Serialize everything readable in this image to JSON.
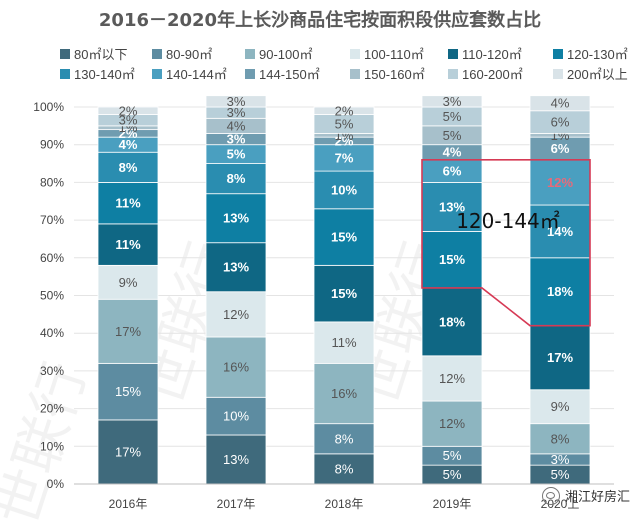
{
  "title": "2016－2020年上长沙商品住宅按面积段供应套数占比",
  "brand": "湘江好房汇",
  "annotation": "120-144㎡",
  "watermark": "世联行",
  "chart_data": {
    "type": "bar",
    "stacked": true,
    "categories": [
      "2016年",
      "2017年",
      "2018年",
      "2019年",
      "2020上"
    ],
    "yticks": [
      "0%",
      "10%",
      "20%",
      "30%",
      "40%",
      "50%",
      "60%",
      "70%",
      "80%",
      "90%",
      "100%"
    ],
    "ylim": [
      0,
      100
    ],
    "legend_position": "top",
    "highlight": {
      "from_category": "2019年",
      "to_category": "2020上",
      "segments": [
        "120-130㎡",
        "130-140㎡",
        "140-144㎡"
      ]
    },
    "series": [
      {
        "name": "80㎡以下",
        "color": "#3f6a7c",
        "values": [
          17,
          13,
          8,
          5,
          5
        ],
        "labels": [
          "17%",
          "13%",
          "8%",
          "5%",
          "5%"
        ]
      },
      {
        "name": "80-90㎡",
        "color": "#5d8ca1",
        "values": [
          15,
          10,
          8,
          5,
          3
        ],
        "labels": [
          "15%",
          "10%",
          "8%",
          "5%",
          "3%"
        ]
      },
      {
        "name": "90-100㎡",
        "color": "#8db5c0",
        "values": [
          17,
          16,
          16,
          12,
          8
        ],
        "labels": [
          "17%",
          "16%",
          "16%",
          "12%",
          "8%"
        ]
      },
      {
        "name": "100-110㎡",
        "color": "#dbe8ec",
        "values": [
          9,
          12,
          11,
          12,
          9
        ],
        "labels": [
          "9%",
          "12%",
          "11%",
          "12%",
          "9%"
        ]
      },
      {
        "name": "110-120㎡",
        "color": "#0f6784",
        "values": [
          11,
          13,
          15,
          18,
          17
        ],
        "labels": [
          "11%",
          "13%",
          "15%",
          "18%",
          "17%"
        ]
      },
      {
        "name": "120-130㎡",
        "color": "#0e7fa3",
        "values": [
          11,
          13,
          15,
          15,
          18
        ],
        "labels": [
          "11%",
          "13%",
          "15%",
          "15%",
          "18%"
        ]
      },
      {
        "name": "130-140㎡",
        "color": "#2a8db0",
        "values": [
          8,
          8,
          10,
          13,
          14
        ],
        "labels": [
          "8%",
          "8%",
          "10%",
          "13%",
          "14%"
        ]
      },
      {
        "name": "140-144㎡",
        "color": "#4a9fc0",
        "values": [
          4,
          5,
          7,
          6,
          12
        ],
        "labels": [
          "4%",
          "5%",
          "7%",
          "6%",
          "12%"
        ]
      },
      {
        "name": "144-150㎡",
        "color": "#6f9cb0",
        "values": [
          2,
          3,
          2,
          4,
          6
        ],
        "labels": [
          "2%",
          "3%",
          "2%",
          "4%",
          "6%"
        ]
      },
      {
        "name": "150-160㎡",
        "color": "#a7c0cb",
        "values": [
          1,
          4,
          1,
          5,
          1
        ],
        "labels": [
          "1%",
          "4%",
          "1%",
          "5%",
          "1%"
        ]
      },
      {
        "name": "160-200㎡",
        "color": "#b8cfd9",
        "values": [
          3,
          3,
          5,
          5,
          6
        ],
        "labels": [
          "3%",
          "3%",
          "5%",
          "5%",
          "6%"
        ]
      },
      {
        "name": "200㎡以上",
        "color": "#d9e3e8",
        "values": [
          2,
          3,
          2,
          3,
          4
        ],
        "labels": [
          "2%",
          "3%",
          "2%",
          "3%",
          "4%"
        ]
      }
    ]
  }
}
